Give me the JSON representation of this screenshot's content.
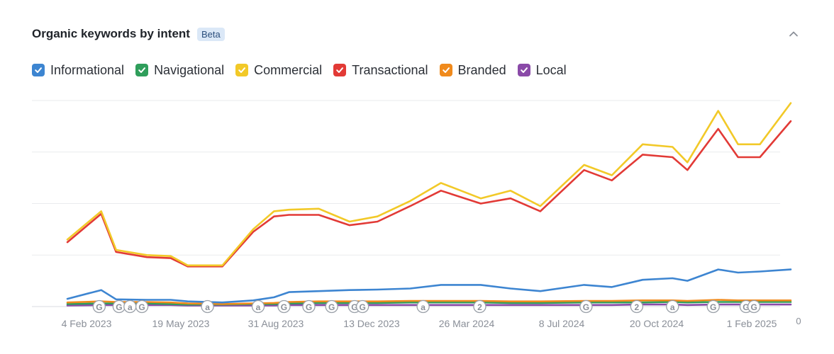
{
  "header": {
    "title": "Organic keywords by intent",
    "badge": "Beta",
    "collapse_icon": "chevron-up-icon"
  },
  "legend": [
    {
      "label": "Informational",
      "color": "#3d85d1",
      "checked": true
    },
    {
      "label": "Navigational",
      "color": "#2f9e5b",
      "checked": true
    },
    {
      "label": "Commercial",
      "color": "#f2c928",
      "checked": true
    },
    {
      "label": "Transactional",
      "color": "#e23a36",
      "checked": true
    },
    {
      "label": "Branded",
      "color": "#f08a1c",
      "checked": true
    },
    {
      "label": "Local",
      "color": "#8a4aa8",
      "checked": true
    }
  ],
  "chart_data": {
    "type": "line",
    "x_tick_labels": [
      "4 Feb 2023",
      "19 May 2023",
      "31 Aug 2023",
      "13 Dec 2023",
      "26 Mar 2024",
      "8 Jul 2024",
      "20 Oct 2024",
      "1 Feb 2025"
    ],
    "y_tick_labels": [
      "0",
      "",
      "",
      "",
      ""
    ],
    "y_ticks": [
      0,
      1,
      2,
      3,
      4
    ],
    "ylim": [
      0,
      4
    ],
    "grid": true,
    "x": [
      "2023-02-04",
      "2023-03-10",
      "2023-03-25",
      "2023-04-25",
      "2023-05-19",
      "2023-06-05",
      "2023-07-10",
      "2023-08-10",
      "2023-08-31",
      "2023-09-15",
      "2023-10-15",
      "2023-11-15",
      "2023-12-13",
      "2024-01-15",
      "2024-02-15",
      "2024-03-26",
      "2024-04-25",
      "2024-05-25",
      "2024-07-08",
      "2024-08-05",
      "2024-09-05",
      "2024-10-05",
      "2024-10-20",
      "2024-11-20",
      "2024-12-10",
      "2025-01-01",
      "2025-02-01"
    ],
    "series": [
      {
        "name": "Commercial",
        "color": "#f2c928",
        "values": [
          1.3,
          1.85,
          1.1,
          1.0,
          0.98,
          0.8,
          0.8,
          1.5,
          1.85,
          1.88,
          1.9,
          1.65,
          1.75,
          2.05,
          2.4,
          2.1,
          2.25,
          1.95,
          2.75,
          2.55,
          3.15,
          3.1,
          2.8,
          3.8,
          3.15,
          3.15,
          3.95
        ]
      },
      {
        "name": "Transactional",
        "color": "#e23a36",
        "values": [
          1.25,
          1.8,
          1.06,
          0.96,
          0.94,
          0.78,
          0.78,
          1.45,
          1.75,
          1.78,
          1.78,
          1.58,
          1.65,
          1.95,
          2.25,
          2.0,
          2.1,
          1.85,
          2.65,
          2.45,
          2.95,
          2.9,
          2.65,
          3.45,
          2.9,
          2.9,
          3.6
        ]
      },
      {
        "name": "Informational",
        "color": "#3d85d1",
        "values": [
          0.15,
          0.32,
          0.14,
          0.13,
          0.13,
          0.1,
          0.08,
          0.12,
          0.18,
          0.28,
          0.3,
          0.32,
          0.33,
          0.35,
          0.42,
          0.42,
          0.35,
          0.3,
          0.42,
          0.38,
          0.52,
          0.55,
          0.5,
          0.72,
          0.66,
          0.68,
          0.72
        ]
      },
      {
        "name": "Branded",
        "color": "#f08a1c",
        "values": [
          0.08,
          0.1,
          0.09,
          0.09,
          0.08,
          0.06,
          0.05,
          0.06,
          0.07,
          0.09,
          0.1,
          0.1,
          0.1,
          0.11,
          0.11,
          0.11,
          0.1,
          0.1,
          0.11,
          0.11,
          0.12,
          0.12,
          0.11,
          0.13,
          0.12,
          0.12,
          0.12
        ]
      },
      {
        "name": "Navigational",
        "color": "#2f9e5b",
        "values": [
          0.05,
          0.06,
          0.06,
          0.06,
          0.05,
          0.04,
          0.04,
          0.05,
          0.05,
          0.06,
          0.07,
          0.07,
          0.07,
          0.08,
          0.08,
          0.08,
          0.07,
          0.07,
          0.08,
          0.08,
          0.08,
          0.09,
          0.08,
          0.09,
          0.09,
          0.09,
          0.09
        ]
      },
      {
        "name": "Local",
        "color": "#8a4aa8",
        "values": [
          0.02,
          0.03,
          0.03,
          0.03,
          0.03,
          0.02,
          0.02,
          0.02,
          0.02,
          0.03,
          0.03,
          0.03,
          0.03,
          0.03,
          0.03,
          0.03,
          0.03,
          0.03,
          0.03,
          0.03,
          0.04,
          0.04,
          0.03,
          0.04,
          0.04,
          0.04,
          0.04
        ]
      }
    ],
    "annotations": [
      {
        "label": "G",
        "x": "2023-03-08"
      },
      {
        "label": "G",
        "x": "2023-03-28"
      },
      {
        "label": "a",
        "x": "2023-04-08"
      },
      {
        "label": "G",
        "x": "2023-04-20"
      },
      {
        "label": "a",
        "x": "2023-06-25"
      },
      {
        "label": "a",
        "x": "2023-08-15"
      },
      {
        "label": "G",
        "x": "2023-09-10"
      },
      {
        "label": "G",
        "x": "2023-10-05"
      },
      {
        "label": "G",
        "x": "2023-10-28"
      },
      {
        "label": "G",
        "x": "2023-11-20"
      },
      {
        "label": "G",
        "x": "2023-11-28"
      },
      {
        "label": "a",
        "x": "2024-01-28"
      },
      {
        "label": "2",
        "x": "2024-03-25"
      },
      {
        "label": "G",
        "x": "2024-07-10"
      },
      {
        "label": "2",
        "x": "2024-08-30"
      },
      {
        "label": "a",
        "x": "2024-10-05"
      },
      {
        "label": "G",
        "x": "2024-11-15"
      },
      {
        "label": "G",
        "x": "2024-12-18"
      },
      {
        "label": "G",
        "x": "2024-12-26"
      }
    ]
  }
}
